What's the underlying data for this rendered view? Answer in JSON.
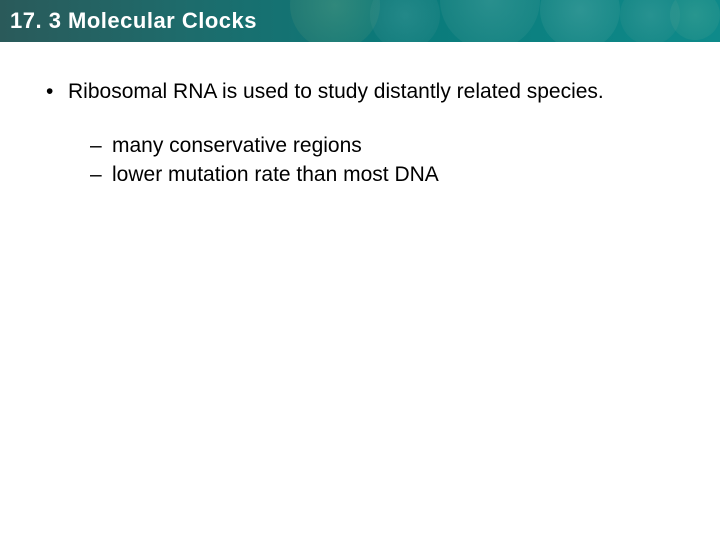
{
  "header": {
    "title": "17. 3 Molecular Clocks",
    "background_gradient": [
      "#2a5a5a",
      "#1e6b6b",
      "#0a7a7a",
      "#0e8a8a"
    ],
    "text_color": "#ffffff",
    "title_fontsize": 22
  },
  "content": {
    "bullets": [
      {
        "text": "Ribosomal RNA is used to study distantly related species.",
        "sub": [
          {
            "text": "many conservative regions"
          },
          {
            "text": "lower mutation rate than most DNA"
          }
        ]
      }
    ],
    "text_color": "#000000",
    "body_fontsize": 21,
    "bullet_marker": "•",
    "subbullet_marker": "–",
    "background_color": "#ffffff"
  }
}
